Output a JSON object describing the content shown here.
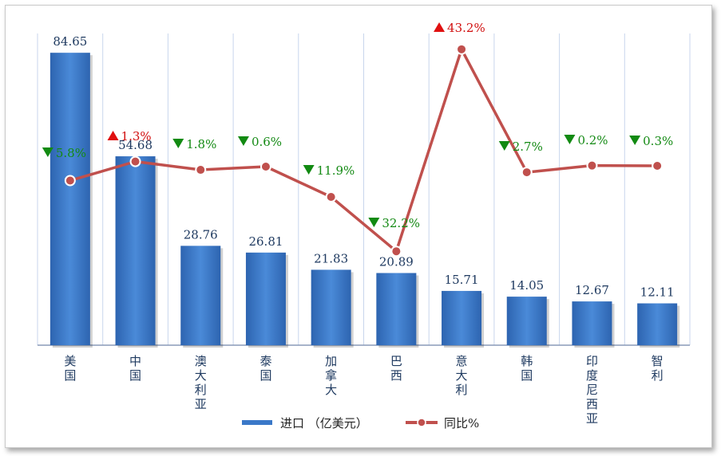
{
  "chart_data": {
    "type": "bar",
    "categories": [
      "美国",
      "中国",
      "澳大利亚",
      "泰国",
      "加拿大",
      "巴西",
      "意大利",
      "韩国",
      "印度尼西亚",
      "智利"
    ],
    "series": [
      {
        "name": "进口 （亿美元）",
        "type": "bar",
        "values": [
          84.65,
          54.68,
          28.76,
          26.81,
          21.83,
          20.89,
          15.71,
          14.05,
          12.67,
          12.11
        ],
        "color": "#3a78c8"
      },
      {
        "name": "同比%",
        "type": "line",
        "values": [
          -5.8,
          1.3,
          -1.8,
          -0.6,
          -11.9,
          -32.2,
          43.2,
          -2.7,
          -0.2,
          -0.3
        ],
        "color": "#c0504d"
      }
    ],
    "labels": [
      "84.65",
      "54.68",
      "28.76",
      "26.81",
      "21.83",
      "20.89",
      "15.71",
      "14.05",
      "12.67",
      "12.11"
    ],
    "pct_labels": [
      "5.8%",
      "1.3%",
      "1.8%",
      "0.6%",
      "11.9%",
      "32.2%",
      "43.2%",
      "2.7%",
      "0.2%",
      "0.3%"
    ],
    "legend": {
      "position": "bottom"
    },
    "grid": "vertical"
  }
}
